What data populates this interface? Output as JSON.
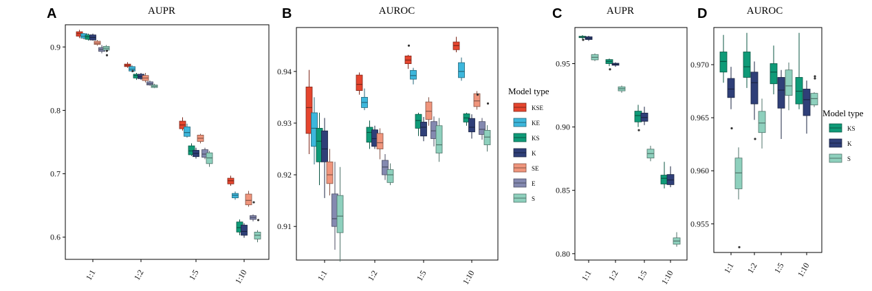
{
  "colors": {
    "KSE": "#e5452e",
    "KE": "#3db7dc",
    "KS": "#0f9b78",
    "K": "#2f3f78",
    "SE": "#f0957c",
    "E": "#8489b0",
    "S": "#8ed0bd"
  },
  "chart_data": [
    {
      "type": "box",
      "panel": "A",
      "title": "AUPR",
      "categories": [
        "1:1",
        "1:2",
        "1:5",
        "1:10"
      ],
      "ylim": [
        0.565,
        0.935
      ],
      "yticks": [
        0.6,
        0.7,
        0.8,
        0.9
      ],
      "series_order": [
        "KSE",
        "KE",
        "KS",
        "K",
        "SE",
        "E",
        "S"
      ],
      "boxes": {
        "1:1": {
          "KSE": {
            "min": 0.914,
            "q1": 0.917,
            "median": 0.921,
            "q3": 0.924,
            "max": 0.927,
            "outliers": []
          },
          "KE": {
            "min": 0.912,
            "q1": 0.914,
            "median": 0.917,
            "q3": 0.921,
            "max": 0.922,
            "outliers": []
          },
          "KS": {
            "min": 0.91,
            "q1": 0.912,
            "median": 0.916,
            "q3": 0.919,
            "max": 0.921,
            "outliers": []
          },
          "K": {
            "min": 0.91,
            "q1": 0.911,
            "median": 0.915,
            "q3": 0.919,
            "max": 0.921,
            "outliers": []
          },
          "SE": {
            "min": 0.902,
            "q1": 0.904,
            "median": 0.906,
            "q3": 0.909,
            "max": 0.911,
            "outliers": []
          },
          "E": {
            "min": 0.89,
            "q1": 0.893,
            "median": 0.896,
            "q3": 0.899,
            "max": 0.903,
            "outliers": []
          },
          "S": {
            "min": 0.892,
            "q1": 0.895,
            "median": 0.898,
            "q3": 0.901,
            "max": 0.903,
            "outliers": [
              0.887,
              0.894
            ]
          }
        },
        "1:2": {
          "KSE": {
            "min": 0.867,
            "q1": 0.869,
            "median": 0.871,
            "q3": 0.873,
            "max": 0.876,
            "outliers": []
          },
          "KE": {
            "min": 0.86,
            "q1": 0.862,
            "median": 0.865,
            "q3": 0.869,
            "max": 0.871,
            "outliers": [
              0.862
            ]
          },
          "KS": {
            "min": 0.848,
            "q1": 0.851,
            "median": 0.855,
            "q3": 0.857,
            "max": 0.859,
            "outliers": []
          },
          "K": {
            "min": 0.848,
            "q1": 0.85,
            "median": 0.853,
            "q3": 0.857,
            "max": 0.859,
            "outliers": []
          },
          "SE": {
            "min": 0.844,
            "q1": 0.847,
            "median": 0.851,
            "q3": 0.855,
            "max": 0.859,
            "outliers": []
          },
          "E": {
            "min": 0.839,
            "q1": 0.84,
            "median": 0.842,
            "q3": 0.845,
            "max": 0.847,
            "outliers": []
          },
          "S": {
            "min": 0.835,
            "q1": 0.836,
            "median": 0.838,
            "q3": 0.84,
            "max": 0.842,
            "outliers": []
          }
        },
        "1:5": {
          "KSE": {
            "min": 0.768,
            "q1": 0.771,
            "median": 0.777,
            "q3": 0.783,
            "max": 0.789,
            "outliers": []
          },
          "KE": {
            "min": 0.757,
            "q1": 0.759,
            "median": 0.765,
            "q3": 0.774,
            "max": 0.779,
            "outliers": []
          },
          "KS": {
            "min": 0.728,
            "q1": 0.73,
            "median": 0.736,
            "q3": 0.744,
            "max": 0.748,
            "outliers": []
          },
          "K": {
            "min": 0.724,
            "q1": 0.727,
            "median": 0.732,
            "q3": 0.737,
            "max": 0.741,
            "outliers": []
          },
          "SE": {
            "min": 0.748,
            "q1": 0.751,
            "median": 0.756,
            "q3": 0.761,
            "max": 0.763,
            "outliers": []
          },
          "E": {
            "min": 0.723,
            "q1": 0.726,
            "median": 0.731,
            "q3": 0.738,
            "max": 0.741,
            "outliers": []
          },
          "S": {
            "min": 0.711,
            "q1": 0.716,
            "median": 0.725,
            "q3": 0.733,
            "max": 0.736,
            "outliers": []
          }
        },
        "1:10": {
          "KSE": {
            "min": 0.681,
            "q1": 0.684,
            "median": 0.689,
            "q3": 0.693,
            "max": 0.697,
            "outliers": []
          },
          "KE": {
            "min": 0.659,
            "q1": 0.662,
            "median": 0.666,
            "q3": 0.669,
            "max": 0.672,
            "outliers": []
          },
          "KS": {
            "min": 0.603,
            "q1": 0.608,
            "median": 0.615,
            "q3": 0.624,
            "max": 0.628,
            "outliers": []
          },
          "K": {
            "min": 0.599,
            "q1": 0.603,
            "median": 0.609,
            "q3": 0.619,
            "max": 0.622,
            "outliers": []
          },
          "SE": {
            "min": 0.648,
            "q1": 0.651,
            "median": 0.658,
            "q3": 0.668,
            "max": 0.673,
            "outliers": []
          },
          "E": {
            "min": 0.625,
            "q1": 0.628,
            "median": 0.631,
            "q3": 0.634,
            "max": 0.636,
            "outliers": [
              0.655
            ]
          },
          "S": {
            "min": 0.592,
            "q1": 0.597,
            "median": 0.603,
            "q3": 0.608,
            "max": 0.611,
            "outliers": [
              0.627
            ]
          }
        }
      }
    },
    {
      "type": "box",
      "panel": "B",
      "title": "AUROC",
      "categories": [
        "1:1",
        "1:2",
        "1:5",
        "1:10"
      ],
      "ylim": [
        0.9035,
        0.9485
      ],
      "yticks": [
        0.91,
        0.92,
        0.93,
        0.94
      ],
      "series_order": [
        "KSE",
        "KE",
        "KS",
        "K",
        "SE",
        "E",
        "S"
      ],
      "boxes": {
        "1:1": {
          "KSE": {
            "min": 0.924,
            "q1": 0.928,
            "median": 0.933,
            "q3": 0.937,
            "max": 0.9403,
            "outliers": []
          },
          "KE": {
            "min": 0.922,
            "q1": 0.9255,
            "median": 0.929,
            "q3": 0.932,
            "max": 0.935,
            "outliers": []
          },
          "KS": {
            "min": 0.918,
            "q1": 0.9225,
            "median": 0.9265,
            "q3": 0.929,
            "max": 0.932,
            "outliers": []
          },
          "K": {
            "min": 0.9155,
            "q1": 0.9225,
            "median": 0.925,
            "q3": 0.9285,
            "max": 0.931,
            "outliers": []
          },
          "SE": {
            "min": 0.916,
            "q1": 0.9183,
            "median": 0.92,
            "q3": 0.9225,
            "max": 0.925,
            "outliers": []
          },
          "E": {
            "min": 0.9055,
            "q1": 0.91,
            "median": 0.9115,
            "q3": 0.9163,
            "max": 0.9225,
            "outliers": []
          },
          "S": {
            "min": 0.9032,
            "q1": 0.9088,
            "median": 0.912,
            "q3": 0.916,
            "max": 0.9215,
            "outliers": []
          }
        },
        "1:2": {
          "KSE": {
            "min": 0.9355,
            "q1": 0.9363,
            "median": 0.9375,
            "q3": 0.9393,
            "max": 0.9398,
            "outliers": []
          },
          "KE": {
            "min": 0.9325,
            "q1": 0.933,
            "median": 0.934,
            "q3": 0.935,
            "max": 0.9367,
            "outliers": []
          },
          "KS": {
            "min": 0.925,
            "q1": 0.9263,
            "median": 0.9282,
            "q3": 0.9292,
            "max": 0.9305,
            "outliers": []
          },
          "K": {
            "min": 0.925,
            "q1": 0.9255,
            "median": 0.927,
            "q3": 0.9287,
            "max": 0.9295,
            "outliers": []
          },
          "SE": {
            "min": 0.923,
            "q1": 0.925,
            "median": 0.9262,
            "q3": 0.928,
            "max": 0.929,
            "outliers": []
          },
          "E": {
            "min": 0.919,
            "q1": 0.92,
            "median": 0.9215,
            "q3": 0.9228,
            "max": 0.924,
            "outliers": []
          },
          "S": {
            "min": 0.918,
            "q1": 0.9185,
            "median": 0.92,
            "q3": 0.921,
            "max": 0.9222,
            "outliers": []
          }
        },
        "1:5": {
          "KSE": {
            "min": 0.9405,
            "q1": 0.9415,
            "median": 0.9422,
            "q3": 0.943,
            "max": 0.9432,
            "outliers": [
              0.945
            ]
          },
          "KE": {
            "min": 0.9375,
            "q1": 0.9385,
            "median": 0.9392,
            "q3": 0.9402,
            "max": 0.9407,
            "outliers": []
          },
          "KS": {
            "min": 0.9275,
            "q1": 0.929,
            "median": 0.9305,
            "q3": 0.9317,
            "max": 0.932,
            "outliers": []
          },
          "K": {
            "min": 0.9265,
            "q1": 0.9275,
            "median": 0.9292,
            "q3": 0.9302,
            "max": 0.9312,
            "outliers": []
          },
          "SE": {
            "min": 0.9295,
            "q1": 0.9307,
            "median": 0.9323,
            "q3": 0.9341,
            "max": 0.935,
            "outliers": []
          },
          "E": {
            "min": 0.9255,
            "q1": 0.927,
            "median": 0.9285,
            "q3": 0.9303,
            "max": 0.9313,
            "outliers": []
          },
          "S": {
            "min": 0.9225,
            "q1": 0.9242,
            "median": 0.9258,
            "q3": 0.9295,
            "max": 0.931,
            "outliers": []
          }
        },
        "1:10": {
          "KSE": {
            "min": 0.9437,
            "q1": 0.9442,
            "median": 0.945,
            "q3": 0.9457,
            "max": 0.9467,
            "outliers": []
          },
          "KE": {
            "min": 0.9382,
            "q1": 0.9388,
            "median": 0.94,
            "q3": 0.9417,
            "max": 0.9427,
            "outliers": []
          },
          "KS": {
            "min": 0.9295,
            "q1": 0.9302,
            "median": 0.931,
            "q3": 0.9318,
            "max": 0.932,
            "outliers": []
          },
          "K": {
            "min": 0.927,
            "q1": 0.9283,
            "median": 0.9292,
            "q3": 0.9309,
            "max": 0.9317,
            "outliers": []
          },
          "SE": {
            "min": 0.9326,
            "q1": 0.9332,
            "median": 0.9343,
            "q3": 0.9357,
            "max": 0.9362,
            "outliers": [
              0.9355
            ]
          },
          "E": {
            "min": 0.9268,
            "q1": 0.9278,
            "median": 0.9288,
            "q3": 0.9303,
            "max": 0.931,
            "outliers": []
          },
          "S": {
            "min": 0.9245,
            "q1": 0.9258,
            "median": 0.9273,
            "q3": 0.9286,
            "max": 0.9296,
            "outliers": [
              0.9338
            ]
          }
        }
      }
    },
    {
      "type": "box",
      "panel": "C",
      "title": "AUPR",
      "categories": [
        "1:1",
        "1:2",
        "1:5",
        "1:10"
      ],
      "ylim": [
        0.795,
        0.9785
      ],
      "yticks": [
        0.8,
        0.85,
        0.9,
        0.95
      ],
      "ytick_labels": [
        "0.80",
        "0.85",
        "0.90",
        "0.95"
      ],
      "series_order": [
        "KS",
        "K",
        "S"
      ],
      "boxes": {
        "1:1": {
          "KS": {
            "min": 0.969,
            "q1": 0.9705,
            "median": 0.971,
            "q3": 0.9716,
            "max": 0.9725,
            "outliers": [
              0.9688
            ]
          },
          "K": {
            "min": 0.968,
            "q1": 0.969,
            "median": 0.97,
            "q3": 0.9712,
            "max": 0.972,
            "outliers": []
          },
          "S": {
            "min": 0.952,
            "q1": 0.953,
            "median": 0.955,
            "q3": 0.9572,
            "max": 0.958,
            "outliers": []
          }
        },
        "1:2": {
          "KS": {
            "min": 0.948,
            "q1": 0.95,
            "median": 0.9518,
            "q3": 0.9532,
            "max": 0.954,
            "outliers": [
              0.9455
            ]
          },
          "K": {
            "min": 0.9475,
            "q1": 0.9487,
            "median": 0.9495,
            "q3": 0.9503,
            "max": 0.951,
            "outliers": []
          },
          "S": {
            "min": 0.927,
            "q1": 0.9285,
            "median": 0.9302,
            "q3": 0.9317,
            "max": 0.9327,
            "outliers": []
          }
        },
        "1:5": {
          "KS": {
            "min": 0.9,
            "q1": 0.904,
            "median": 0.909,
            "q3": 0.9125,
            "max": 0.9175,
            "outliers": [
              0.8975
            ]
          },
          "K": {
            "min": 0.9015,
            "q1": 0.9045,
            "median": 0.9075,
            "q3": 0.911,
            "max": 0.916,
            "outliers": []
          },
          "S": {
            "min": 0.873,
            "q1": 0.8755,
            "median": 0.879,
            "q3": 0.8825,
            "max": 0.8852,
            "outliers": []
          }
        },
        "1:10": {
          "KS": {
            "min": 0.8515,
            "q1": 0.855,
            "median": 0.8595,
            "q3": 0.862,
            "max": 0.8725,
            "outliers": []
          },
          "K": {
            "min": 0.8525,
            "q1": 0.8545,
            "median": 0.8582,
            "q3": 0.8625,
            "max": 0.869,
            "outliers": []
          },
          "S": {
            "min": 0.8055,
            "q1": 0.8075,
            "median": 0.81,
            "q3": 0.8125,
            "max": 0.817,
            "outliers": []
          }
        }
      }
    },
    {
      "type": "box",
      "panel": "D",
      "title": "AUROC",
      "categories": [
        "1:1",
        "1:2",
        "1:5",
        "1:10"
      ],
      "ylim": [
        0.9523,
        0.9735
      ],
      "yticks": [
        0.955,
        0.96,
        0.965,
        0.97
      ],
      "ytick_labels": [
        "0.955",
        "0.960",
        "0.965",
        "0.970"
      ],
      "series_order": [
        "KS",
        "K",
        "S"
      ],
      "boxes": {
        "1:1": {
          "KS": {
            "min": 0.9683,
            "q1": 0.9693,
            "median": 0.9703,
            "q3": 0.9712,
            "max": 0.9728,
            "outliers": []
          },
          "K": {
            "min": 0.9658,
            "q1": 0.9669,
            "median": 0.9677,
            "q3": 0.9687,
            "max": 0.9698,
            "outliers": [
              0.964
            ]
          },
          "S": {
            "min": 0.9573,
            "q1": 0.9583,
            "median": 0.9598,
            "q3": 0.9612,
            "max": 0.9622,
            "outliers": [
              0.9528
            ]
          }
        },
        "1:2": {
          "KS": {
            "min": 0.9678,
            "q1": 0.9688,
            "median": 0.9698,
            "q3": 0.9712,
            "max": 0.973,
            "outliers": []
          },
          "K": {
            "min": 0.9648,
            "q1": 0.9663,
            "median": 0.9683,
            "q3": 0.9693,
            "max": 0.9703,
            "outliers": [
              0.963
            ]
          },
          "S": {
            "min": 0.9621,
            "q1": 0.9636,
            "median": 0.9645,
            "q3": 0.9656,
            "max": 0.9668,
            "outliers": []
          }
        },
        "1:5": {
          "KS": {
            "min": 0.9672,
            "q1": 0.9682,
            "median": 0.9693,
            "q3": 0.9701,
            "max": 0.9718,
            "outliers": []
          },
          "K": {
            "min": 0.963,
            "q1": 0.9659,
            "median": 0.9676,
            "q3": 0.9688,
            "max": 0.9695,
            "outliers": []
          },
          "S": {
            "min": 0.9657,
            "q1": 0.9671,
            "median": 0.968,
            "q3": 0.9695,
            "max": 0.9702,
            "outliers": []
          }
        },
        "1:10": {
          "KS": {
            "min": 0.9658,
            "q1": 0.9663,
            "median": 0.9675,
            "q3": 0.9688,
            "max": 0.973,
            "outliers": []
          },
          "K": {
            "min": 0.9635,
            "q1": 0.9652,
            "median": 0.9667,
            "q3": 0.9677,
            "max": 0.9685,
            "outliers": []
          },
          "S": {
            "min": 0.966,
            "q1": 0.9662,
            "median": 0.9668,
            "q3": 0.9673,
            "max": 0.9674,
            "outliers": [
              0.9689,
              0.9687
            ]
          }
        }
      }
    }
  ],
  "legends": [
    {
      "title": "Model type",
      "items": [
        "KSE",
        "KE",
        "KS",
        "K",
        "SE",
        "E",
        "S"
      ]
    },
    {
      "title": "Model type",
      "items": [
        "KS",
        "K",
        "S"
      ]
    }
  ]
}
